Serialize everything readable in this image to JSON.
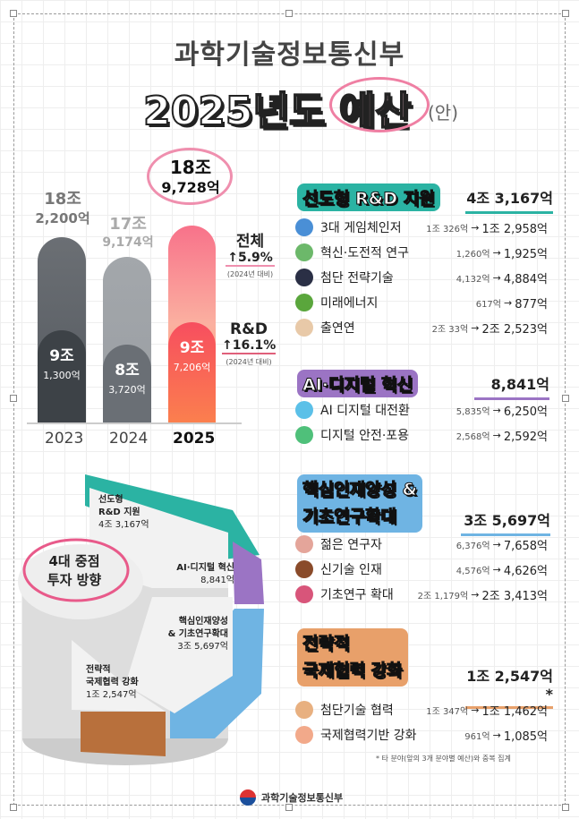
{
  "header": {
    "ministry": "과학기술정보통신부",
    "year_title": "2025년도",
    "budget": "예산",
    "draft": "(안)"
  },
  "bars": [
    {
      "year": "2023",
      "total": "18조",
      "total_sub": "2,200억",
      "rd": "9조",
      "rd_sub": "1,300억"
    },
    {
      "year": "2024",
      "total": "17조",
      "total_sub": "9,174억",
      "rd": "8조",
      "rd_sub": "3,720억"
    },
    {
      "year": "2025",
      "total": "18조",
      "total_sub": "9,728억",
      "rd": "9조",
      "rd_sub": "7,206억"
    }
  ],
  "growth": {
    "total_label": "전체",
    "total_pct": "5.9%",
    "rd_label": "R&D",
    "rd_pct": "16.1%",
    "note": "(2024년 대비)",
    "arrow": "↑"
  },
  "pie": {
    "center": "4대 중점",
    "center2": "투자 방향",
    "segments": [
      {
        "name": "선도형",
        "name2": "R&D 지원",
        "value": "4조 3,167억",
        "color": "#2bb3a3"
      },
      {
        "name": "AI·디지털 혁신",
        "name2": "",
        "value": "8,841억",
        "color": "#9b74c4"
      },
      {
        "name": "핵심인재양성",
        "name2": "& 기초연구확대",
        "value": "3조 5,697억",
        "color": "#6fb4e3"
      },
      {
        "name": "전략적",
        "name2": "국제협력 강화",
        "value": "1조 2,547억",
        "color": "#b8703c"
      }
    ]
  },
  "sections": [
    {
      "title": "선도형 R&D 지원",
      "title2": "",
      "total": "4조 3,167억",
      "color": "#1f8f86",
      "items": [
        {
          "icon": "cycle-icon",
          "name": "3대 게임체인저",
          "from": "1조 326억",
          "to": "1조 2,958억"
        },
        {
          "icon": "magnifier-icon",
          "name": "혁신·도전적 연구",
          "from": "1,260억",
          "to": "1,925억"
        },
        {
          "icon": "chess-knight-icon",
          "name": "첨단 전략기술",
          "from": "4,132억",
          "to": "4,884억"
        },
        {
          "icon": "sprout-plug-icon",
          "name": "미래에너지",
          "from": "617억",
          "to": "877억"
        },
        {
          "icon": "researcher-icon",
          "name": "출연연",
          "from": "2조 33억",
          "to": "2조 2,523억"
        }
      ]
    },
    {
      "title": "AI·디지털 혁신",
      "title2": "",
      "total": "8,841억",
      "color": "#7b54b0",
      "items": [
        {
          "icon": "chat-bubble-icon",
          "name": "AI 디지털 대전환",
          "from": "5,835억",
          "to": "6,250억"
        },
        {
          "icon": "shield-check-icon",
          "name": "디지털 안전·포용",
          "from": "2,568억",
          "to": "2,592억"
        }
      ]
    },
    {
      "title": "핵심인재양성 &",
      "title2": "기초연구확대",
      "total": "3조 5,697억",
      "color": "#4d9ad6",
      "items": [
        {
          "icon": "person-icon",
          "name": "젊은 연구자",
          "from": "6,376억",
          "to": "7,658억"
        },
        {
          "icon": "briefcase-icon",
          "name": "신기술 인재",
          "from": "4,576억",
          "to": "4,626억"
        },
        {
          "icon": "books-icon",
          "name": "기초연구 확대",
          "from": "2조 1,179억",
          "to": "2조 3,413억"
        }
      ]
    },
    {
      "title": "전략적",
      "title2": "국제협력 강화",
      "total": "1조 2,547억*",
      "color": "#d8894a",
      "items": [
        {
          "icon": "praying-hands-icon",
          "name": "첨단기술 협력",
          "from": "1조 347억",
          "to": "1조 1,462억"
        },
        {
          "icon": "handshake-icon",
          "name": "국제협력기반 강화",
          "from": "961억",
          "to": "1,085억"
        }
      ]
    }
  ],
  "footnote": "* 타 분야(앞의 3개 분야별 예산)와 중복 집계",
  "arrow": "→",
  "footer": {
    "logo_text": "과학기술정보통신부"
  }
}
